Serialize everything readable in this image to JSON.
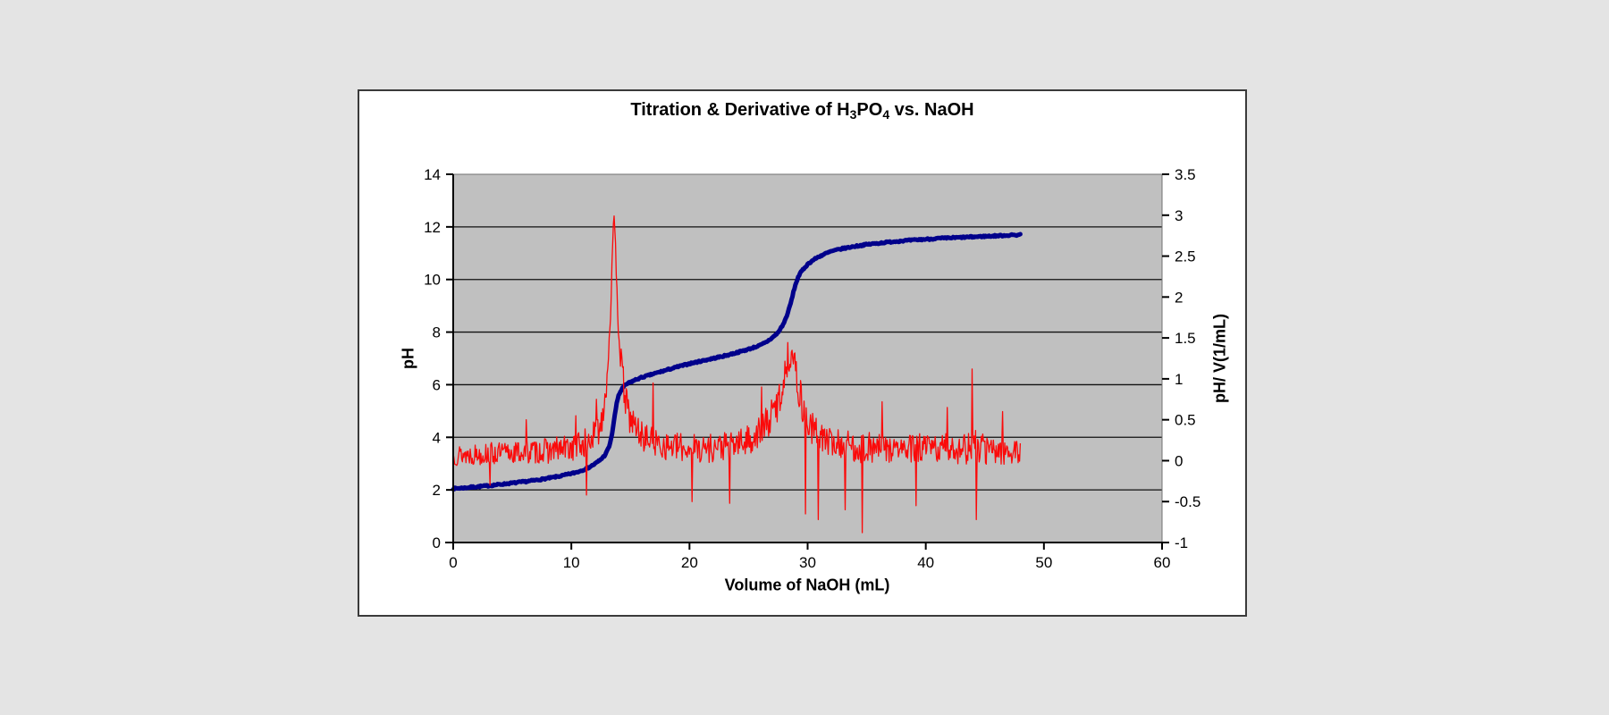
{
  "page": {
    "background": "#e4e4e4"
  },
  "chart_box": {
    "background": "#ffffff",
    "border_color": "#3a3a3a"
  },
  "chart_data": {
    "type": "line",
    "title": "Titration & Derivative of H3PO4 vs. NaOH",
    "title_parts": {
      "t1": "Titration & Derivative of H",
      "sub1": "3",
      "t2": "PO",
      "sub2": "4",
      "t3": " vs. NaOH"
    },
    "x_axis": {
      "label": "Volume of NaOH (mL)",
      "min": 0,
      "max": 60,
      "tick_values": [
        0,
        10,
        20,
        30,
        40,
        50,
        60
      ],
      "tick_labels": [
        "0",
        "10",
        "20",
        "30",
        "40",
        "50",
        "60"
      ]
    },
    "y_left": {
      "label": "pH",
      "min": 0,
      "max": 14,
      "tick_values": [
        0,
        2,
        4,
        6,
        8,
        10,
        12,
        14
      ],
      "tick_labels": [
        "0",
        "2",
        "4",
        "6",
        "8",
        "10",
        "12",
        "14"
      ]
    },
    "y_right": {
      "label": "pH/ V(1/mL)",
      "min": -1,
      "max": 3.5,
      "tick_values": [
        -1,
        -0.5,
        0,
        0.5,
        1,
        1.5,
        2,
        2.5,
        3,
        3.5
      ],
      "tick_labels": [
        "-1",
        "-0.5",
        "0",
        "0.5",
        "1",
        "1.5",
        "2",
        "2.5",
        "3",
        "3.5"
      ]
    },
    "plot": {
      "background": "#c0c0c0",
      "border_color": "#707070",
      "grid_color": "#111111",
      "axis_color": "#000000",
      "gridline_ph_values": [
        2,
        4,
        6,
        8,
        10,
        12
      ],
      "legend": "none",
      "grid": "horizontal-only"
    },
    "series": [
      {
        "name": "pH (titration curve)",
        "axis": "left",
        "color": "#00008b",
        "stroke_width": 5,
        "x_start": 0,
        "x_end": 48,
        "step": 0.08,
        "jitter": 0.03,
        "seed": 7,
        "anchors": [
          [
            0,
            2.05
          ],
          [
            1,
            2.08
          ],
          [
            2,
            2.12
          ],
          [
            3,
            2.16
          ],
          [
            4,
            2.21
          ],
          [
            5,
            2.26
          ],
          [
            6,
            2.31
          ],
          [
            7,
            2.37
          ],
          [
            8,
            2.44
          ],
          [
            9,
            2.52
          ],
          [
            10,
            2.62
          ],
          [
            10.5,
            2.68
          ],
          [
            11,
            2.76
          ],
          [
            11.5,
            2.86
          ],
          [
            12,
            2.99
          ],
          [
            12.5,
            3.16
          ],
          [
            12.8,
            3.3
          ],
          [
            13,
            3.45
          ],
          [
            13.2,
            3.65
          ],
          [
            13.4,
            4.0
          ],
          [
            13.6,
            4.6
          ],
          [
            13.8,
            5.2
          ],
          [
            14,
            5.6
          ],
          [
            14.3,
            5.85
          ],
          [
            14.6,
            6.0
          ],
          [
            15,
            6.1
          ],
          [
            15.5,
            6.2
          ],
          [
            16,
            6.28
          ],
          [
            17,
            6.42
          ],
          [
            18,
            6.55
          ],
          [
            19,
            6.68
          ],
          [
            20,
            6.8
          ],
          [
            21,
            6.9
          ],
          [
            22,
            7.0
          ],
          [
            23,
            7.1
          ],
          [
            24,
            7.22
          ],
          [
            25,
            7.35
          ],
          [
            26,
            7.5
          ],
          [
            26.5,
            7.62
          ],
          [
            27,
            7.78
          ],
          [
            27.5,
            7.98
          ],
          [
            28,
            8.35
          ],
          [
            28.3,
            8.7
          ],
          [
            28.6,
            9.15
          ],
          [
            28.9,
            9.7
          ],
          [
            29.2,
            10.1
          ],
          [
            29.5,
            10.32
          ],
          [
            30,
            10.58
          ],
          [
            30.5,
            10.75
          ],
          [
            31,
            10.88
          ],
          [
            31.5,
            10.98
          ],
          [
            32,
            11.07
          ],
          [
            33,
            11.18
          ],
          [
            34,
            11.26
          ],
          [
            35,
            11.33
          ],
          [
            36,
            11.38
          ],
          [
            37,
            11.43
          ],
          [
            38,
            11.47
          ],
          [
            39,
            11.5
          ],
          [
            40,
            11.53
          ],
          [
            41,
            11.56
          ],
          [
            42,
            11.58
          ],
          [
            43,
            11.6
          ],
          [
            44,
            11.62
          ],
          [
            45,
            11.64
          ],
          [
            46,
            11.66
          ],
          [
            47,
            11.68
          ],
          [
            48,
            11.7
          ]
        ]
      },
      {
        "name": "derivative (pH/ V)",
        "axis": "right",
        "color": "#fb0a0a",
        "stroke_width": 1.3,
        "x_start": 0,
        "x_end": 48,
        "step": 0.06,
        "seed": 13,
        "anchors": [
          [
            0,
            0.07
          ],
          [
            4,
            0.09
          ],
          [
            8,
            0.12
          ],
          [
            10,
            0.16
          ],
          [
            11,
            0.2
          ],
          [
            12,
            0.3
          ],
          [
            12.5,
            0.45
          ],
          [
            13,
            0.95
          ],
          [
            13.3,
            1.8
          ],
          [
            13.6,
            2.9
          ],
          [
            13.8,
            2.4
          ],
          [
            14,
            1.6
          ],
          [
            14.3,
            1.05
          ],
          [
            14.7,
            0.65
          ],
          [
            15,
            0.5
          ],
          [
            16,
            0.3
          ],
          [
            17,
            0.22
          ],
          [
            18,
            0.18
          ],
          [
            20,
            0.15
          ],
          [
            22,
            0.16
          ],
          [
            24,
            0.2
          ],
          [
            25,
            0.25
          ],
          [
            26,
            0.35
          ],
          [
            27,
            0.55
          ],
          [
            27.7,
            0.8
          ],
          [
            28.2,
            1.15
          ],
          [
            28.6,
            1.4
          ],
          [
            29,
            1.05
          ],
          [
            29.5,
            0.7
          ],
          [
            30,
            0.45
          ],
          [
            31,
            0.3
          ],
          [
            32,
            0.22
          ],
          [
            34,
            0.17
          ],
          [
            36,
            0.15
          ],
          [
            38,
            0.14
          ],
          [
            40,
            0.14
          ],
          [
            42,
            0.15
          ],
          [
            44,
            0.16
          ],
          [
            46,
            0.12
          ],
          [
            48,
            0.1
          ]
        ],
        "noise_amp_anchors": [
          [
            0,
            0.13
          ],
          [
            5,
            0.14
          ],
          [
            9,
            0.16
          ],
          [
            11,
            0.18
          ],
          [
            12.5,
            0.2
          ],
          [
            13.6,
            0.15
          ],
          [
            14.5,
            0.22
          ],
          [
            16,
            0.18
          ],
          [
            18,
            0.17
          ],
          [
            20,
            0.18
          ],
          [
            24,
            0.18
          ],
          [
            26,
            0.2
          ],
          [
            28,
            0.24
          ],
          [
            29,
            0.24
          ],
          [
            30,
            0.2
          ],
          [
            32,
            0.18
          ],
          [
            34,
            0.2
          ],
          [
            36,
            0.18
          ],
          [
            38,
            0.17
          ],
          [
            40,
            0.2
          ],
          [
            42,
            0.18
          ],
          [
            44,
            0.22
          ],
          [
            46,
            0.17
          ],
          [
            48,
            0.13
          ]
        ],
        "outlier_spikes": [
          [
            3.1,
            -0.3
          ],
          [
            6.2,
            0.5
          ],
          [
            10.4,
            0.55
          ],
          [
            11.3,
            -0.42
          ],
          [
            12.1,
            0.75
          ],
          [
            16.9,
            0.95
          ],
          [
            20.2,
            -0.5
          ],
          [
            23.4,
            -0.52
          ],
          [
            26.1,
            0.9
          ],
          [
            29.8,
            -0.65
          ],
          [
            30.9,
            -0.72
          ],
          [
            33.2,
            -0.6
          ],
          [
            34.6,
            -0.88
          ],
          [
            36.3,
            0.72
          ],
          [
            39.2,
            -0.55
          ],
          [
            41.8,
            0.65
          ],
          [
            43.9,
            1.12
          ],
          [
            44.3,
            -0.72
          ],
          [
            46.5,
            0.6
          ]
        ]
      }
    ]
  }
}
